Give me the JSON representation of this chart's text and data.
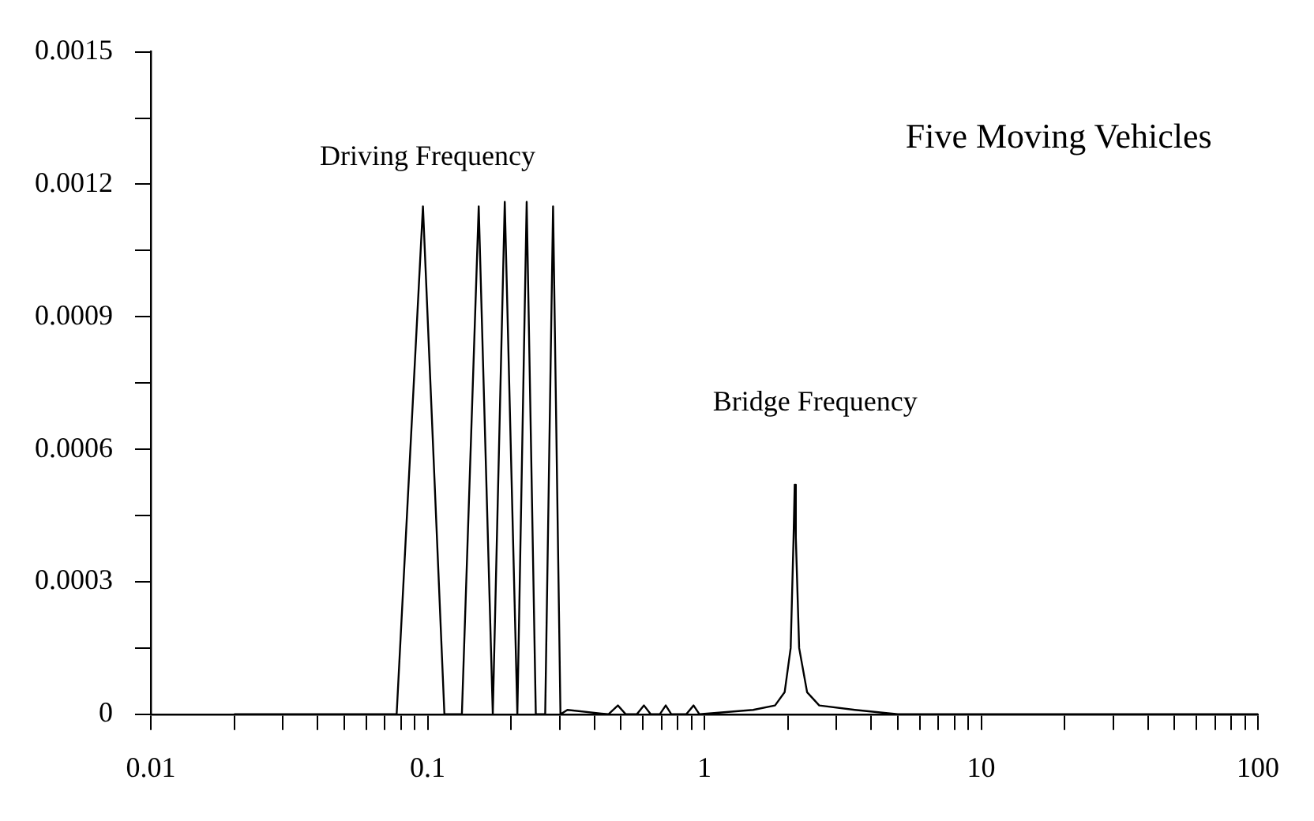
{
  "chart_data": {
    "type": "line",
    "title": "Five Moving Vehicles",
    "annotations": [
      "Driving Frequency",
      "Bridge Frequency"
    ],
    "x": [
      0.02,
      0.0773,
      0.0962,
      0.115,
      0.133,
      0.153,
      0.172,
      0.19,
      0.211,
      0.228,
      0.246,
      0.266,
      0.284,
      0.302,
      0.32,
      0.45,
      0.487,
      0.52,
      0.57,
      0.605,
      0.64,
      0.69,
      0.725,
      0.76,
      0.86,
      0.914,
      0.96,
      1.5,
      1.8,
      1.95,
      2.05,
      2.1,
      2.12,
      2.14,
      2.2,
      2.35,
      2.6,
      3.5,
      5,
      100
    ],
    "series": [
      {
        "color": "#000000",
        "values": [
          0,
          0,
          0.00115,
          0,
          0,
          0.00115,
          0,
          0.00116,
          0,
          0.00116,
          0,
          0,
          0.00115,
          0,
          1e-05,
          0,
          2e-05,
          0,
          0,
          2e-05,
          0,
          0,
          2e-05,
          0,
          0,
          2e-05,
          0,
          1e-05,
          2e-05,
          5e-05,
          0.00015,
          0.0004,
          0.00052,
          0.0004,
          0.00015,
          5e-05,
          2e-05,
          1e-05,
          0,
          0
        ]
      }
    ],
    "log": "x",
    "xlim": [
      0.01,
      100
    ],
    "xticks": [
      0.01,
      {
        "value": 0.02,
        "label": null
      },
      {
        "value": 0.03,
        "label": null
      },
      {
        "value": 0.04,
        "label": null
      },
      {
        "value": 0.05,
        "label": null
      },
      {
        "value": 0.06,
        "label": null
      },
      {
        "value": 0.07,
        "label": null
      },
      {
        "value": 0.08,
        "label": null
      },
      {
        "value": 0.09,
        "label": null
      },
      0.1,
      {
        "value": 0.2,
        "label": null
      },
      {
        "value": 0.3,
        "label": null
      },
      {
        "value": 0.4,
        "label": null
      },
      {
        "value": 0.5,
        "label": null
      },
      {
        "value": 0.6,
        "label": null
      },
      {
        "value": 0.7,
        "label": null
      },
      {
        "value": 0.8,
        "label": null
      },
      {
        "value": 0.9,
        "label": null
      },
      1,
      {
        "value": 2,
        "label": null
      },
      {
        "value": 3,
        "label": null
      },
      {
        "value": 4,
        "label": null
      },
      {
        "value": 5,
        "label": null
      },
      {
        "value": 6,
        "label": null
      },
      {
        "value": 7,
        "label": null
      },
      {
        "value": 8,
        "label": null
      },
      {
        "value": 9,
        "label": null
      },
      10,
      {
        "value": 20,
        "label": null
      },
      {
        "value": 30,
        "label": null
      },
      {
        "value": 40,
        "label": null
      },
      {
        "value": 50,
        "label": null
      },
      {
        "value": 60,
        "label": null
      },
      {
        "value": 70,
        "label": null
      },
      {
        "value": 80,
        "label": null
      },
      {
        "value": 90,
        "label": null
      },
      100
    ],
    "ylim": [
      0,
      0.0015
    ],
    "yticks": [
      0,
      {
        "value": 0.00015,
        "label": null
      },
      0.0003,
      {
        "value": 0.00045,
        "label": null
      },
      0.0006,
      {
        "value": 0.00075,
        "label": null
      },
      0.0009,
      {
        "value": 0.00105,
        "label": null
      },
      0.0012,
      {
        "value": 0.00135,
        "label": null
      },
      0.0015
    ],
    "grid": false,
    "legend": false,
    "marker": "none",
    "line_style": "solid"
  }
}
